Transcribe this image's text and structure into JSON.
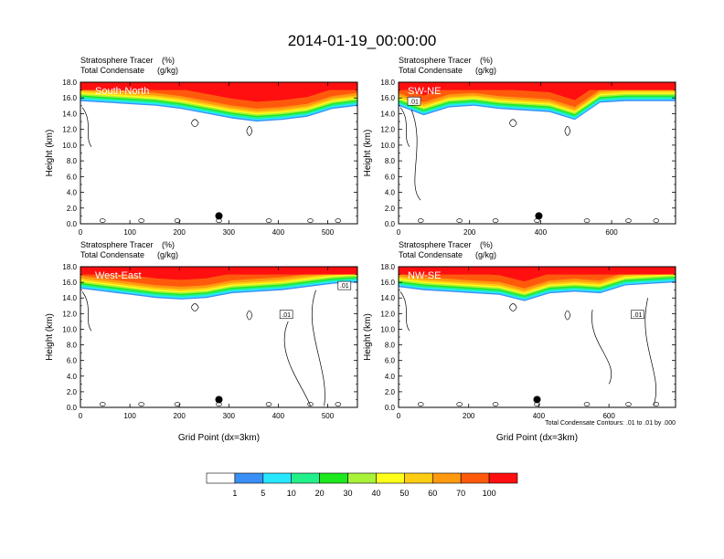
{
  "figure_title": "2014-01-19_00:00:00",
  "chart_data": [
    {
      "type": "heatmap",
      "panel_label": "South-North",
      "left_string_1": "Stratosphere Tracer",
      "right_string_1": "(%)",
      "left_string_2": "Total Condensate",
      "right_string_2": "(g/kg)",
      "ylabel": "Height (km)",
      "xlabel": "",
      "xlim": [
        0,
        560
      ],
      "ylim": [
        0,
        18
      ],
      "xticks": [
        "0",
        "100",
        "200",
        "300",
        "400",
        "500"
      ],
      "yticks": [
        "0.0",
        "2.0",
        "4.0",
        "6.0",
        "8.0",
        "10.0",
        "12.0",
        "14.0",
        "16.0",
        "18.0"
      ],
      "marker_x": 280,
      "tracer_base_km": [
        15.6,
        15.4,
        15.2,
        15.0,
        14.6,
        14.0,
        13.4,
        13.0,
        13.2,
        13.6,
        14.6,
        15.0
      ],
      "contour_label": "",
      "footnote": ""
    },
    {
      "type": "heatmap",
      "panel_label": "SW-NE",
      "left_string_1": "Stratosphere Tracer",
      "right_string_1": "(%)",
      "left_string_2": "Total Condensate",
      "right_string_2": "(g/kg)",
      "ylabel": "Height (km)",
      "xlabel": "",
      "xlim": [
        0,
        780
      ],
      "ylim": [
        0,
        18
      ],
      "xticks": [
        "0",
        "200",
        "400",
        "600"
      ],
      "yticks": [
        "0.0",
        "2.0",
        "4.0",
        "6.0",
        "8.0",
        "10.0",
        "12.0",
        "14.0",
        "16.0",
        "18.0"
      ],
      "marker_x": 395,
      "tracer_base_km": [
        15.0,
        13.8,
        14.8,
        15.0,
        14.6,
        14.4,
        14.2,
        13.2,
        15.4,
        15.6,
        15.6,
        15.6
      ],
      "contour_label": ".01",
      "footnote": ""
    },
    {
      "type": "heatmap",
      "panel_label": "West-East",
      "left_string_1": "Stratosphere Tracer",
      "right_string_1": "(%)",
      "left_string_2": "Total Condensate",
      "right_string_2": "(g/kg)",
      "ylabel": "Height (km)",
      "xlabel": "Grid Point (dx=3km)",
      "xlim": [
        0,
        560
      ],
      "ylim": [
        0,
        18
      ],
      "xticks": [
        "0",
        "100",
        "200",
        "300",
        "400",
        "500"
      ],
      "yticks": [
        "0.0",
        "2.0",
        "4.0",
        "6.0",
        "8.0",
        "10.0",
        "12.0",
        "14.0",
        "16.0",
        "18.0"
      ],
      "marker_x": 280,
      "tracer_base_km": [
        15.2,
        14.8,
        14.4,
        14.0,
        13.8,
        14.0,
        14.6,
        14.8,
        15.0,
        15.4,
        15.8,
        16.0
      ],
      "contour_label": ".01",
      "footnote": ""
    },
    {
      "type": "heatmap",
      "panel_label": "NW-SE",
      "left_string_1": "Stratosphere Tracer",
      "right_string_1": "(%)",
      "left_string_2": "Total Condensate",
      "right_string_2": "(g/kg)",
      "ylabel": "Height (km)",
      "xlabel": "Grid Point (dx=3km)",
      "xlim": [
        0,
        790
      ],
      "ylim": [
        0,
        18
      ],
      "xticks": [
        "0",
        "200",
        "400",
        "600"
      ],
      "yticks": [
        "0.0",
        "2.0",
        "4.0",
        "6.0",
        "8.0",
        "10.0",
        "12.0",
        "14.0",
        "16.0",
        "18.0"
      ],
      "marker_x": 395,
      "tracer_base_km": [
        15.4,
        15.0,
        14.8,
        14.6,
        14.4,
        13.6,
        14.6,
        14.8,
        14.6,
        15.6,
        15.8,
        16.0
      ],
      "contour_label": ".01",
      "footnote": "Total Condensate Contours: .01 to .01 by .000"
    }
  ],
  "colorbar": {
    "labels": [
      "1",
      "5",
      "10",
      "20",
      "30",
      "40",
      "50",
      "60",
      "70",
      "100"
    ],
    "colors": [
      "#ffffff",
      "#3a8ff5",
      "#27e6ff",
      "#22f08a",
      "#1ee81e",
      "#a8f23a",
      "#ffff1a",
      "#ffcc14",
      "#ff9910",
      "#ff5a0c",
      "#ff0f0f"
    ]
  }
}
